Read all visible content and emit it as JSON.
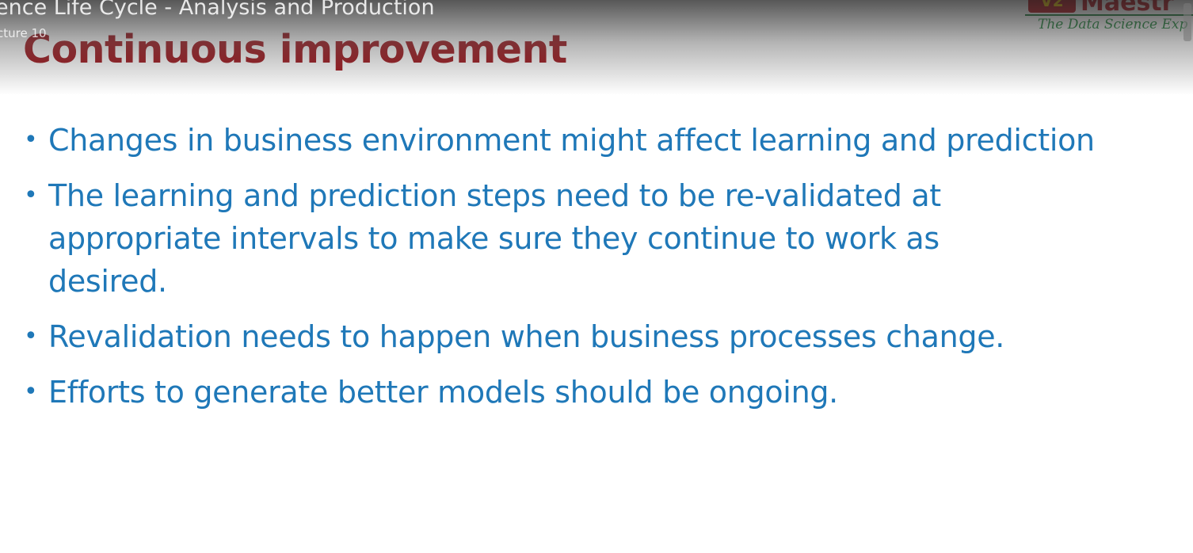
{
  "video": {
    "title": "ence Life Cycle - Analysis and Production",
    "subtitle": "cture 10"
  },
  "logo": {
    "mark": "V2",
    "name": "Maestr",
    "tagline": "The Data Science Exp"
  },
  "slide": {
    "title": "Continuous improvement",
    "bullets": [
      "Changes in business environment might affect learning and prediction",
      "The learning and prediction steps need to be re-validated at appropriate intervals to make sure they continue to work as desired.",
      "Revalidation needs to happen when business processes change.",
      "Efforts to generate better models should be ongoing."
    ]
  },
  "colors": {
    "title": "#9b0f16",
    "bullet_text": "#1f78b8",
    "logo_red": "#b5121b",
    "logo_green": "#1f8a3c"
  }
}
